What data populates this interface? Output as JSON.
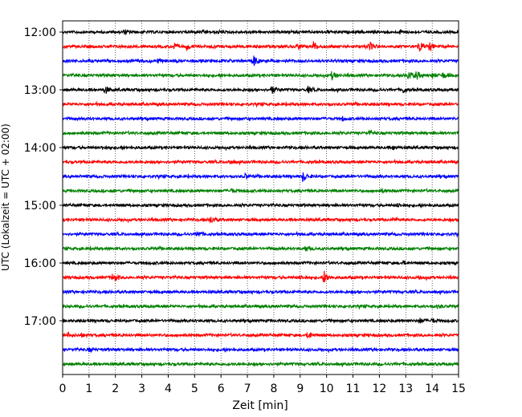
{
  "chart_data": {
    "type": "seismogram-helicorder",
    "xlabel": "Zeit  [min]",
    "ylabel": "UTC (Lokalzeit = UTC + 02:00)",
    "xlim": [
      0,
      15
    ],
    "x_ticks": [
      "0",
      "1",
      "2",
      "3",
      "4",
      "5",
      "6",
      "7",
      "8",
      "9",
      "10",
      "11",
      "12",
      "13",
      "14",
      "15"
    ],
    "y_ticks": [
      {
        "label": "12:00",
        "trace": 0
      },
      {
        "label": "13:00",
        "trace": 4
      },
      {
        "label": "14:00",
        "trace": 8
      },
      {
        "label": "15:00",
        "trace": 12
      },
      {
        "label": "16:00",
        "trace": 16
      },
      {
        "label": "17:00",
        "trace": 20
      }
    ],
    "grid": "vertical-dotted",
    "trace_minutes": 15,
    "color_cycle": [
      "#000000",
      "#ff0000",
      "#0000ff",
      "#008000"
    ],
    "traces": [
      {
        "start": "12:00",
        "events": [
          {
            "t": 2.3,
            "amp": 2
          },
          {
            "t": 12.8,
            "amp": 2
          }
        ]
      },
      {
        "start": "12:15",
        "events": [
          {
            "t": 4.2,
            "amp": 4
          },
          {
            "t": 4.7,
            "amp": 4
          },
          {
            "t": 8.9,
            "amp": 4
          },
          {
            "t": 9.5,
            "amp": 6
          },
          {
            "t": 11.6,
            "amp": 6
          },
          {
            "t": 13.5,
            "amp": 8
          },
          {
            "t": 13.9,
            "amp": 5
          }
        ]
      },
      {
        "start": "12:30",
        "events": [
          {
            "t": 7.2,
            "amp": 8
          },
          {
            "t": 3.6,
            "amp": 2
          }
        ]
      },
      {
        "start": "12:45",
        "events": [
          {
            "t": 10.2,
            "amp": 5
          },
          {
            "t": 13.1,
            "amp": 6
          },
          {
            "t": 13.4,
            "amp": 5
          },
          {
            "t": 14.0,
            "amp": 3
          },
          {
            "t": 14.4,
            "amp": 3
          }
        ]
      },
      {
        "start": "13:00",
        "events": [
          {
            "t": 1.6,
            "amp": 5
          },
          {
            "t": 7.9,
            "amp": 5
          },
          {
            "t": 9.3,
            "amp": 3
          },
          {
            "t": 12.9,
            "amp": 3
          }
        ]
      },
      {
        "start": "13:15",
        "events": []
      },
      {
        "start": "13:30",
        "events": [
          {
            "t": 10.6,
            "amp": 2
          }
        ]
      },
      {
        "start": "13:45",
        "events": [
          {
            "t": 11.6,
            "amp": 2
          }
        ]
      },
      {
        "start": "14:00",
        "events": [
          {
            "t": 1.5,
            "amp": 2
          },
          {
            "t": 12.5,
            "amp": 2
          }
        ]
      },
      {
        "start": "14:15",
        "events": [
          {
            "t": 6.3,
            "amp": 2
          }
        ]
      },
      {
        "start": "14:30",
        "events": [
          {
            "t": 6.9,
            "amp": 3
          },
          {
            "t": 9.1,
            "amp": 6
          }
        ]
      },
      {
        "start": "14:45",
        "events": [
          {
            "t": 6.4,
            "amp": 2
          },
          {
            "t": 12.1,
            "amp": 2
          }
        ]
      },
      {
        "start": "15:00",
        "events": [
          {
            "t": 12.7,
            "amp": 2
          }
        ]
      },
      {
        "start": "15:15",
        "events": [
          {
            "t": 5.6,
            "amp": 4
          },
          {
            "t": 12.5,
            "amp": 2
          }
        ]
      },
      {
        "start": "15:30",
        "events": [
          {
            "t": 5.1,
            "amp": 4
          }
        ]
      },
      {
        "start": "15:45",
        "events": [
          {
            "t": 9.2,
            "amp": 3
          }
        ]
      },
      {
        "start": "16:00",
        "events": [
          {
            "t": 12.9,
            "amp": 2
          }
        ]
      },
      {
        "start": "16:15",
        "events": [
          {
            "t": 1.9,
            "amp": 6
          },
          {
            "t": 9.0,
            "amp": 2
          },
          {
            "t": 9.9,
            "amp": 8
          },
          {
            "t": 13.5,
            "amp": 2
          }
        ]
      },
      {
        "start": "16:30",
        "events": []
      },
      {
        "start": "16:45",
        "events": [
          {
            "t": 14.2,
            "amp": 2
          }
        ]
      },
      {
        "start": "17:00",
        "events": [
          {
            "t": 13.5,
            "amp": 3
          },
          {
            "t": 14.0,
            "amp": 2
          }
        ]
      },
      {
        "start": "17:15",
        "events": [
          {
            "t": 0.2,
            "amp": 3
          },
          {
            "t": 0.7,
            "amp": 2
          },
          {
            "t": 9.3,
            "amp": 5
          }
        ]
      },
      {
        "start": "17:30",
        "events": [
          {
            "t": 1.0,
            "amp": 2
          }
        ]
      },
      {
        "start": "17:45",
        "events": []
      }
    ]
  }
}
